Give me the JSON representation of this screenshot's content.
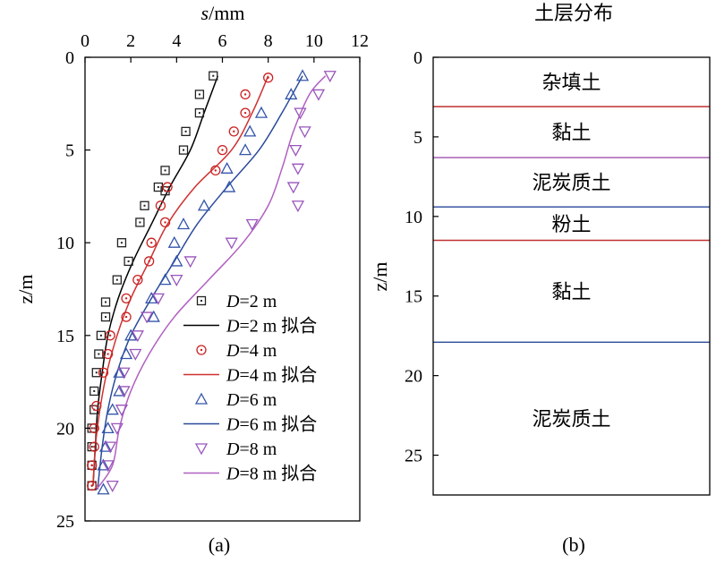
{
  "chart_data": [
    {
      "panel_label": "(a)",
      "type": "scatter",
      "xlabel_var": "s",
      "xlabel_unit": "/mm",
      "ylabel": "z/m",
      "xlim": [
        0,
        12
      ],
      "ylim": [
        0,
        25
      ],
      "x_ticks": [
        "0",
        "2",
        "4",
        "6",
        "8",
        "10",
        "12"
      ],
      "y_ticks": [
        "0",
        "5",
        "10",
        "15",
        "20",
        "25"
      ],
      "x_axis_position": "top",
      "y_axis_reversed": true,
      "legend_position": "lower-right",
      "series": [
        {
          "legend_var": "D",
          "legend_text": "=2 m",
          "marker": "square",
          "color": "#222222",
          "points": [
            [
              5.6,
              1
            ],
            [
              5.0,
              2
            ],
            [
              5.0,
              3
            ],
            [
              4.4,
              4
            ],
            [
              4.3,
              5
            ],
            [
              3.5,
              6.1
            ],
            [
              3.2,
              7
            ],
            [
              3.5,
              7.2
            ],
            [
              2.6,
              8
            ],
            [
              2.4,
              8.9
            ],
            [
              1.6,
              10
            ],
            [
              1.9,
              11
            ],
            [
              1.4,
              12
            ],
            [
              0.9,
              13.2
            ],
            [
              0.9,
              14
            ],
            [
              0.7,
              15
            ],
            [
              0.6,
              16
            ],
            [
              0.5,
              17
            ],
            [
              0.4,
              18
            ],
            [
              0.4,
              19
            ],
            [
              0.3,
              20
            ],
            [
              0.3,
              21
            ],
            [
              0.3,
              22
            ],
            [
              0.3,
              23.1
            ]
          ]
        },
        {
          "legend_var": "D",
          "legend_text": "=2 m 拟合",
          "marker": "line",
          "color": "#000000",
          "points": [
            [
              5.8,
              1
            ],
            [
              5.2,
              3
            ],
            [
              4.6,
              5
            ],
            [
              3.7,
              7
            ],
            [
              2.9,
              9
            ],
            [
              2.1,
              11
            ],
            [
              1.45,
              13
            ],
            [
              1.0,
              15
            ],
            [
              0.75,
              17
            ],
            [
              0.55,
              19
            ],
            [
              0.45,
              21
            ],
            [
              0.35,
              23.1
            ]
          ]
        },
        {
          "legend_var": "D",
          "legend_text": "=4 m",
          "marker": "circle",
          "color": "#cc2222",
          "points": [
            [
              8.0,
              1.1
            ],
            [
              7.0,
              2
            ],
            [
              7.0,
              3
            ],
            [
              6.5,
              4
            ],
            [
              6.0,
              5
            ],
            [
              5.7,
              6.1
            ],
            [
              3.6,
              7
            ],
            [
              3.3,
              8
            ],
            [
              3.5,
              8.9
            ],
            [
              2.9,
              10
            ],
            [
              2.8,
              11
            ],
            [
              2.3,
              12
            ],
            [
              1.8,
              13
            ],
            [
              1.8,
              14
            ],
            [
              1.1,
              15
            ],
            [
              1.0,
              16
            ],
            [
              0.8,
              17
            ],
            [
              0.5,
              18.8
            ],
            [
              0.4,
              20
            ],
            [
              0.4,
              21
            ],
            [
              0.3,
              22
            ],
            [
              0.3,
              23.1
            ]
          ]
        },
        {
          "legend_var": "D",
          "legend_text": "=4 m 拟合",
          "marker": "line",
          "color": "#d03030",
          "points": [
            [
              8.0,
              1.0
            ],
            [
              7.3,
              3
            ],
            [
              6.4,
              5
            ],
            [
              4.8,
              7
            ],
            [
              3.6,
              9
            ],
            [
              2.8,
              11
            ],
            [
              2.0,
              13
            ],
            [
              1.4,
              15
            ],
            [
              0.95,
              17
            ],
            [
              0.65,
              19
            ],
            [
              0.45,
              21
            ],
            [
              0.35,
              23.1
            ]
          ]
        },
        {
          "legend_var": "D",
          "legend_text": "=6 m",
          "marker": "triangle-up",
          "color": "#3355aa",
          "points": [
            [
              9.5,
              1
            ],
            [
              9.0,
              2
            ],
            [
              7.7,
              3
            ],
            [
              7.2,
              4
            ],
            [
              7.0,
              5
            ],
            [
              6.2,
              6
            ],
            [
              6.3,
              7
            ],
            [
              5.2,
              8
            ],
            [
              4.3,
              9
            ],
            [
              3.9,
              10
            ],
            [
              4.0,
              11
            ],
            [
              3.5,
              12
            ],
            [
              2.9,
              13
            ],
            [
              3.0,
              14
            ],
            [
              2.0,
              15
            ],
            [
              1.8,
              16
            ],
            [
              1.5,
              17
            ],
            [
              1.5,
              18
            ],
            [
              1.2,
              19
            ],
            [
              1.0,
              20
            ],
            [
              0.9,
              21
            ],
            [
              0.8,
              22
            ],
            [
              0.8,
              23.3
            ]
          ]
        },
        {
          "legend_var": "D",
          "legend_text": "=6 m 拟合",
          "marker": "line",
          "color": "#2a4a9a",
          "points": [
            [
              9.5,
              1.0
            ],
            [
              8.6,
              3
            ],
            [
              7.6,
              5
            ],
            [
              6.2,
              7
            ],
            [
              4.9,
              9
            ],
            [
              3.9,
              11
            ],
            [
              2.9,
              13
            ],
            [
              2.0,
              15
            ],
            [
              1.4,
              17
            ],
            [
              1.0,
              19
            ],
            [
              0.75,
              21
            ],
            [
              0.55,
              23.3
            ]
          ]
        },
        {
          "legend_var": "D",
          "legend_text": "=8 m",
          "marker": "triangle-down",
          "color": "#9955bb",
          "points": [
            [
              10.7,
              1
            ],
            [
              10.2,
              2
            ],
            [
              9.4,
              3
            ],
            [
              9.6,
              4
            ],
            [
              9.2,
              5
            ],
            [
              9.3,
              6
            ],
            [
              9.1,
              7
            ],
            [
              9.3,
              8
            ],
            [
              7.3,
              9
            ],
            [
              6.4,
              10
            ],
            [
              4.6,
              11
            ],
            [
              4.0,
              12
            ],
            [
              3.2,
              13
            ],
            [
              2.7,
              14
            ],
            [
              2.3,
              15
            ],
            [
              2.2,
              16
            ],
            [
              1.7,
              17
            ],
            [
              1.7,
              18
            ],
            [
              1.6,
              19
            ],
            [
              1.4,
              20
            ],
            [
              1.1,
              21
            ],
            [
              1.0,
              22
            ],
            [
              1.2,
              23.1
            ]
          ]
        },
        {
          "legend_var": "D",
          "legend_text": "=8 m 拟合",
          "marker": "line",
          "color": "#b060c0",
          "points": [
            [
              10.5,
              1.0
            ],
            [
              9.8,
              2
            ],
            [
              9.1,
              4
            ],
            [
              8.6,
              6
            ],
            [
              8.0,
              8
            ],
            [
              6.9,
              10
            ],
            [
              5.4,
              12
            ],
            [
              3.9,
              14
            ],
            [
              2.8,
              16
            ],
            [
              2.0,
              18
            ],
            [
              1.5,
              20
            ],
            [
              1.2,
              22
            ],
            [
              0.5,
              23.3
            ]
          ]
        }
      ]
    },
    {
      "panel_label": "(b)",
      "type": "table",
      "title": "土层分布",
      "ylabel": "z/m",
      "ylim": [
        0,
        27.5
      ],
      "y_ticks": [
        "0",
        "5",
        "10",
        "15",
        "20",
        "25"
      ],
      "y_axis_reversed": true,
      "layers": [
        {
          "name": "杂填土",
          "top": 0,
          "bottom": 3.1,
          "boundary_color": "#c03030"
        },
        {
          "name": "黏土",
          "top": 3.1,
          "bottom": 6.3,
          "boundary_color": "#a050b0"
        },
        {
          "name": "泥炭质土",
          "top": 6.3,
          "bottom": 9.4,
          "boundary_color": "#2a4a9a"
        },
        {
          "name": "粉土",
          "top": 9.4,
          "bottom": 11.5,
          "boundary_color": "#c03030"
        },
        {
          "name": "黏土",
          "top": 11.5,
          "bottom": 17.9,
          "boundary_color": "#2a4a9a"
        },
        {
          "name": "泥炭质土",
          "top": 17.9,
          "bottom": 27.5,
          "boundary_color": ""
        }
      ]
    }
  ]
}
